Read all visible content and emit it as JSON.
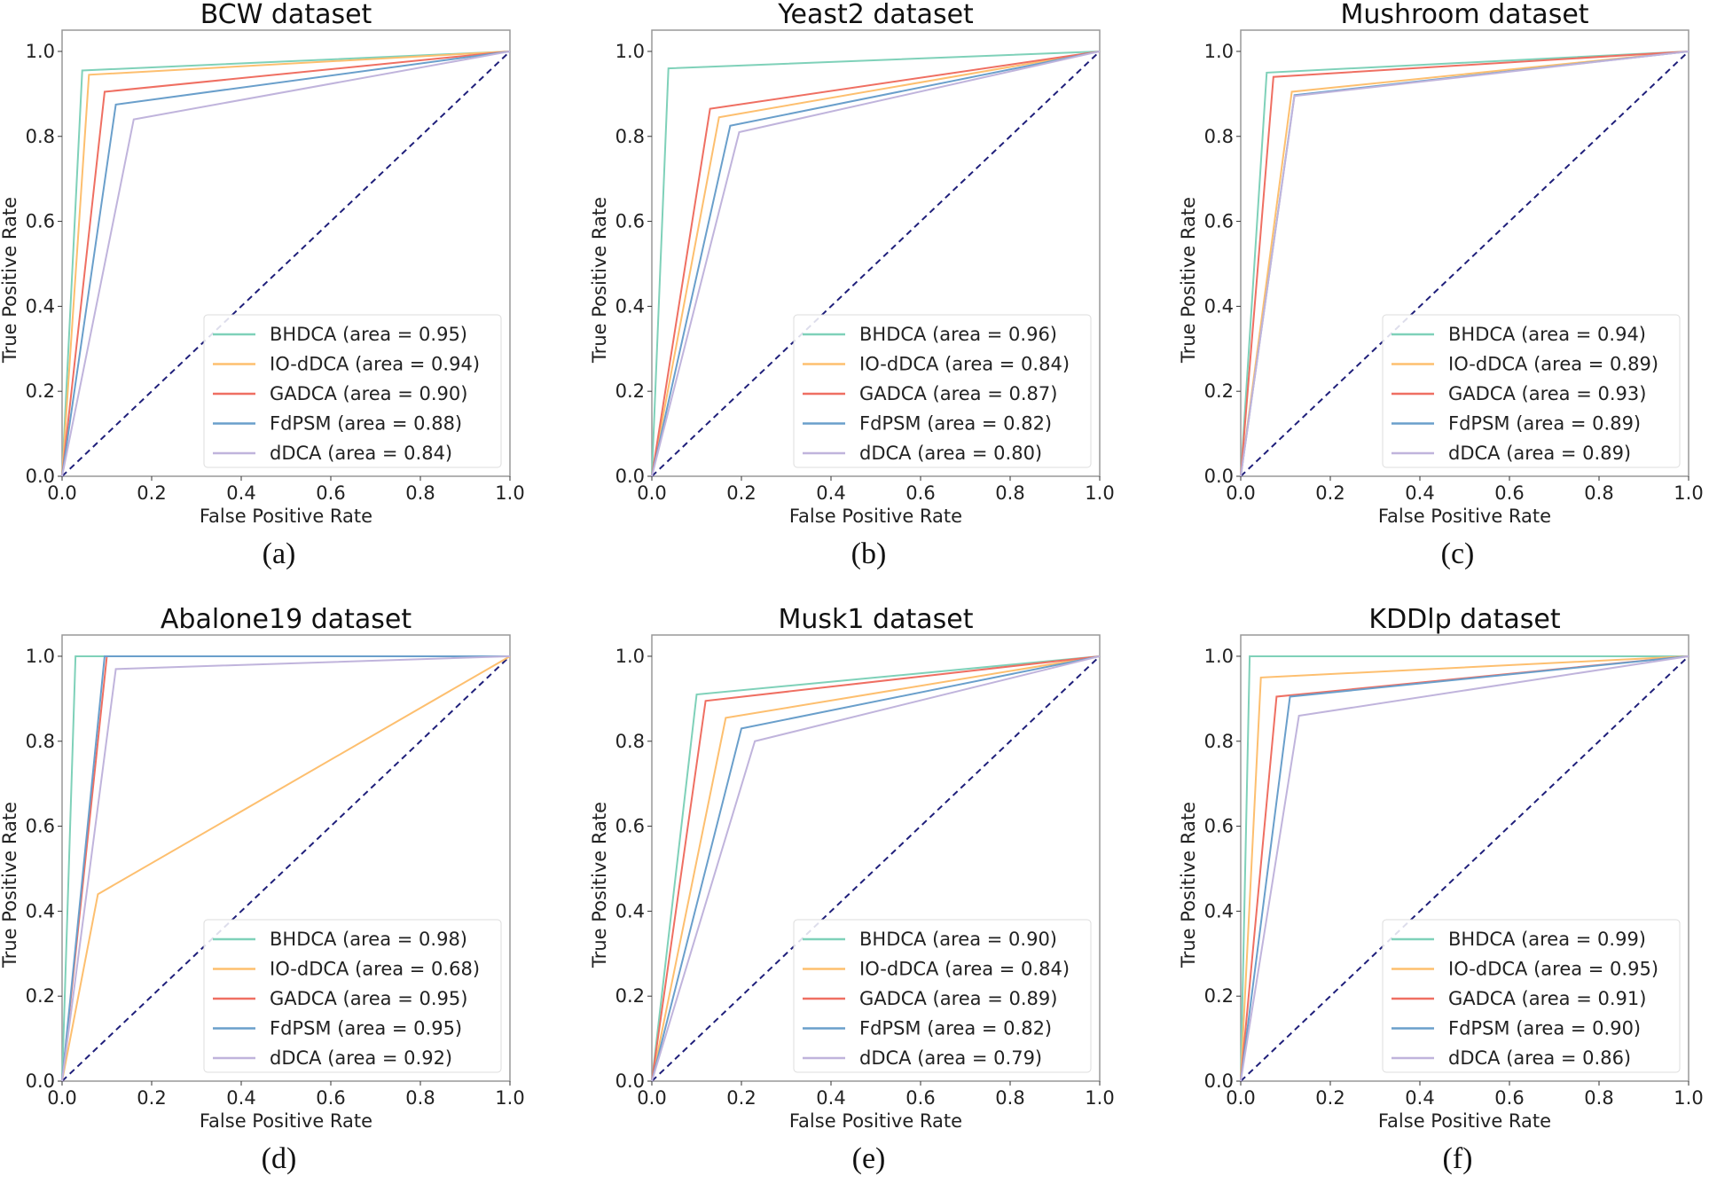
{
  "colors": {
    "BHDCA": "#7fd1b9",
    "IO-dDCA": "#fdbf6f",
    "GADCA": "#ef6f62",
    "FdPSM": "#6a9fcb",
    "dDCA": "#c0b4dc",
    "diagonal": "#1f1f7a"
  },
  "chart_data": [
    {
      "type": "line",
      "caption": "(a)",
      "title": "BCW dataset",
      "xlabel": "False Positive Rate",
      "ylabel": "True Positive Rate",
      "xlim": [
        0,
        1
      ],
      "ylim": [
        0,
        1.05
      ],
      "xticks": [
        "0.0",
        "0.2",
        "0.4",
        "0.6",
        "0.8",
        "1.0"
      ],
      "yticks": [
        "0.0",
        "0.2",
        "0.4",
        "0.6",
        "0.8",
        "1.0"
      ],
      "legend": "lower-right",
      "grid": false,
      "series": [
        {
          "name": "BHDCA",
          "label": "BHDCA (area = 0.95)",
          "x": [
            0,
            0.045,
            1
          ],
          "y": [
            0,
            0.955,
            1
          ]
        },
        {
          "name": "IO-dDCA",
          "label": "IO-dDCA (area = 0.94)",
          "x": [
            0,
            0.06,
            1
          ],
          "y": [
            0,
            0.945,
            1
          ]
        },
        {
          "name": "GADCA",
          "label": "GADCA (area = 0.90)",
          "x": [
            0,
            0.095,
            1
          ],
          "y": [
            0,
            0.905,
            1
          ]
        },
        {
          "name": "FdPSM",
          "label": "FdPSM (area = 0.88)",
          "x": [
            0,
            0.12,
            1
          ],
          "y": [
            0,
            0.875,
            1
          ]
        },
        {
          "name": "dDCA",
          "label": "dDCA (area = 0.84)",
          "x": [
            0,
            0.16,
            1
          ],
          "y": [
            0,
            0.84,
            1
          ]
        }
      ]
    },
    {
      "type": "line",
      "caption": "(b)",
      "title": "Yeast2 dataset",
      "xlabel": "False Positive Rate",
      "ylabel": "True Positive Rate",
      "xlim": [
        0,
        1
      ],
      "ylim": [
        0,
        1.05
      ],
      "xticks": [
        "0.0",
        "0.2",
        "0.4",
        "0.6",
        "0.8",
        "1.0"
      ],
      "yticks": [
        "0.0",
        "0.2",
        "0.4",
        "0.6",
        "0.8",
        "1.0"
      ],
      "legend": "lower-right",
      "grid": false,
      "series": [
        {
          "name": "BHDCA",
          "label": "BHDCA (area = 0.96)",
          "x": [
            0,
            0.037,
            1
          ],
          "y": [
            0,
            0.96,
            1
          ]
        },
        {
          "name": "IO-dDCA",
          "label": "IO-dDCA (area = 0.84)",
          "x": [
            0,
            0.15,
            1
          ],
          "y": [
            0,
            0.845,
            1
          ]
        },
        {
          "name": "GADCA",
          "label": "GADCA (area = 0.87)",
          "x": [
            0,
            0.13,
            1
          ],
          "y": [
            0,
            0.865,
            1
          ]
        },
        {
          "name": "FdPSM",
          "label": "FdPSM (area = 0.82)",
          "x": [
            0,
            0.175,
            1
          ],
          "y": [
            0,
            0.825,
            1
          ]
        },
        {
          "name": "dDCA",
          "label": "dDCA (area = 0.80)",
          "x": [
            0,
            0.195,
            1
          ],
          "y": [
            0,
            0.81,
            1
          ]
        }
      ]
    },
    {
      "type": "line",
      "caption": "(c)",
      "title": "Mushroom dataset",
      "xlabel": "False Positive Rate",
      "ylabel": "True Positive Rate",
      "xlim": [
        0,
        1
      ],
      "ylim": [
        0,
        1.05
      ],
      "xticks": [
        "0.0",
        "0.2",
        "0.4",
        "0.6",
        "0.8",
        "1.0"
      ],
      "yticks": [
        "0.0",
        "0.2",
        "0.4",
        "0.6",
        "0.8",
        "1.0"
      ],
      "legend": "lower-right",
      "grid": false,
      "series": [
        {
          "name": "BHDCA",
          "label": "BHDCA (area = 0.94)",
          "x": [
            0,
            0.058,
            1
          ],
          "y": [
            0,
            0.95,
            1
          ]
        },
        {
          "name": "IO-dDCA",
          "label": "IO-dDCA (area = 0.89)",
          "x": [
            0,
            0.114,
            1
          ],
          "y": [
            0,
            0.905,
            1
          ]
        },
        {
          "name": "GADCA",
          "label": "GADCA (area = 0.93)",
          "x": [
            0,
            0.073,
            1
          ],
          "y": [
            0,
            0.94,
            1
          ]
        },
        {
          "name": "FdPSM",
          "label": "FdPSM (area = 0.89)",
          "x": [
            0,
            0.12,
            1
          ],
          "y": [
            0,
            0.897,
            1
          ]
        },
        {
          "name": "dDCA",
          "label": "dDCA (area = 0.89)",
          "x": [
            0,
            0.12,
            1
          ],
          "y": [
            0,
            0.895,
            1
          ]
        }
      ]
    },
    {
      "type": "line",
      "caption": "(d)",
      "title": "Abalone19 dataset",
      "xlabel": "False Positive Rate",
      "ylabel": "True Positive Rate",
      "xlim": [
        0,
        1
      ],
      "ylim": [
        0,
        1.05
      ],
      "xticks": [
        "0.0",
        "0.2",
        "0.4",
        "0.6",
        "0.8",
        "1.0"
      ],
      "yticks": [
        "0.0",
        "0.2",
        "0.4",
        "0.6",
        "0.8",
        "1.0"
      ],
      "legend": "lower-right",
      "grid": false,
      "series": [
        {
          "name": "BHDCA",
          "label": "BHDCA (area = 0.98)",
          "x": [
            0,
            0.03,
            1
          ],
          "y": [
            0,
            1.0,
            1
          ]
        },
        {
          "name": "IO-dDCA",
          "label": "IO-dDCA (area = 0.68)",
          "x": [
            0,
            0.08,
            1
          ],
          "y": [
            0,
            0.44,
            1
          ]
        },
        {
          "name": "GADCA",
          "label": "GADCA (area = 0.95)",
          "x": [
            0,
            0.1,
            1
          ],
          "y": [
            0,
            1.0,
            1
          ]
        },
        {
          "name": "FdPSM",
          "label": "FdPSM (area = 0.95)",
          "x": [
            0,
            0.095,
            1
          ],
          "y": [
            0,
            1.0,
            1
          ]
        },
        {
          "name": "dDCA",
          "label": "dDCA (area = 0.92)",
          "x": [
            0,
            0.12,
            1
          ],
          "y": [
            0,
            0.97,
            1
          ]
        }
      ]
    },
    {
      "type": "line",
      "caption": "(e)",
      "title": "Musk1 dataset",
      "xlabel": "False Positive Rate",
      "ylabel": "True Positive Rate",
      "xlim": [
        0,
        1
      ],
      "ylim": [
        0,
        1.05
      ],
      "xticks": [
        "0.0",
        "0.2",
        "0.4",
        "0.6",
        "0.8",
        "1.0"
      ],
      "yticks": [
        "0.0",
        "0.2",
        "0.4",
        "0.6",
        "0.8",
        "1.0"
      ],
      "legend": "lower-right",
      "grid": false,
      "series": [
        {
          "name": "BHDCA",
          "label": "BHDCA (area = 0.90)",
          "x": [
            0,
            0.1,
            1
          ],
          "y": [
            0,
            0.91,
            1
          ]
        },
        {
          "name": "IO-dDCA",
          "label": "IO-dDCA (area = 0.84)",
          "x": [
            0,
            0.165,
            1
          ],
          "y": [
            0,
            0.855,
            1
          ]
        },
        {
          "name": "GADCA",
          "label": "GADCA (area = 0.89)",
          "x": [
            0,
            0.12,
            1
          ],
          "y": [
            0,
            0.895,
            1
          ]
        },
        {
          "name": "FdPSM",
          "label": "FdPSM (area = 0.82)",
          "x": [
            0,
            0.2,
            1
          ],
          "y": [
            0,
            0.83,
            1
          ]
        },
        {
          "name": "dDCA",
          "label": "dDCA (area = 0.79)",
          "x": [
            0,
            0.23,
            1
          ],
          "y": [
            0,
            0.8,
            1
          ]
        }
      ]
    },
    {
      "type": "line",
      "caption": "(f)",
      "title": "KDDlp dataset",
      "xlabel": "False Positive Rate",
      "ylabel": "True Positive Rate",
      "xlim": [
        0,
        1
      ],
      "ylim": [
        0,
        1.05
      ],
      "xticks": [
        "0.0",
        "0.2",
        "0.4",
        "0.6",
        "0.8",
        "1.0"
      ],
      "yticks": [
        "0.0",
        "0.2",
        "0.4",
        "0.6",
        "0.8",
        "1.0"
      ],
      "legend": "lower-right",
      "grid": false,
      "series": [
        {
          "name": "BHDCA",
          "label": "BHDCA (area = 0.99)",
          "x": [
            0,
            0.02,
            1
          ],
          "y": [
            0,
            1.0,
            1
          ]
        },
        {
          "name": "IO-dDCA",
          "label": "IO-dDCA (area = 0.95)",
          "x": [
            0,
            0.045,
            1
          ],
          "y": [
            0,
            0.95,
            1
          ]
        },
        {
          "name": "GADCA",
          "label": "GADCA (area = 0.91)",
          "x": [
            0,
            0.08,
            1
          ],
          "y": [
            0,
            0.905,
            1
          ]
        },
        {
          "name": "FdPSM",
          "label": "FdPSM (area = 0.90)",
          "x": [
            0,
            0.11,
            1
          ],
          "y": [
            0,
            0.905,
            1
          ]
        },
        {
          "name": "dDCA",
          "label": "dDCA (area = 0.86)",
          "x": [
            0,
            0.13,
            1
          ],
          "y": [
            0,
            0.86,
            1
          ]
        }
      ]
    }
  ]
}
